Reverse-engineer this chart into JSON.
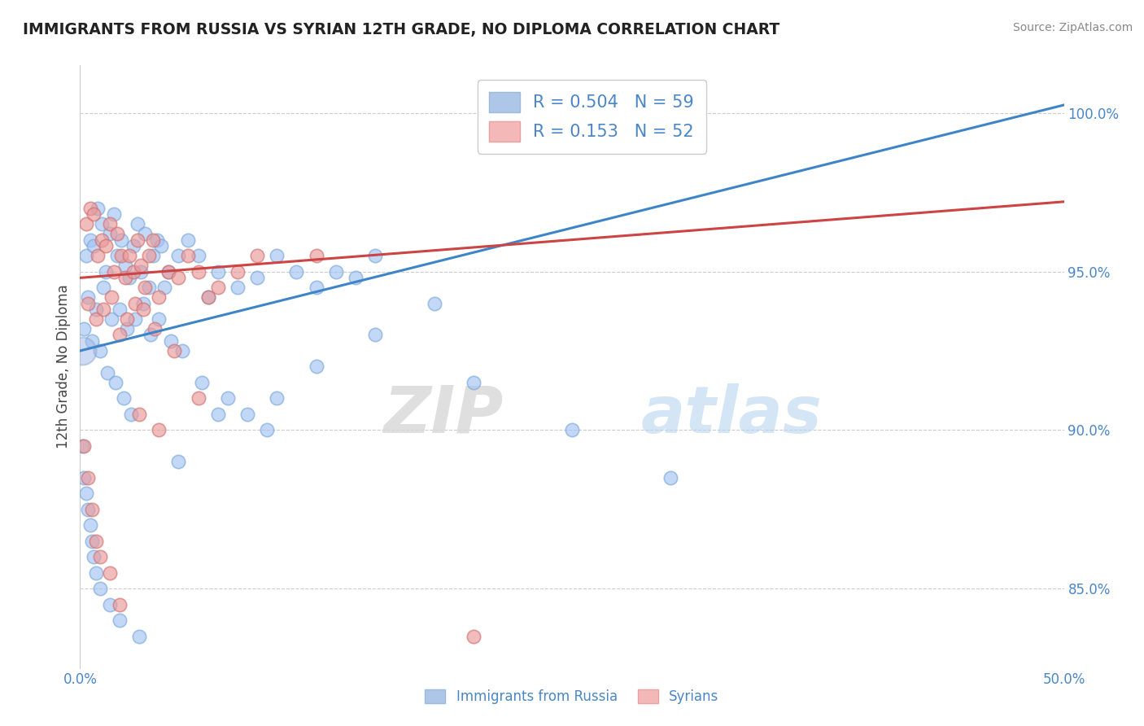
{
  "title": "IMMIGRANTS FROM RUSSIA VS SYRIAN 12TH GRADE, NO DIPLOMA CORRELATION CHART",
  "source_text": "Source: ZipAtlas.com",
  "ylabel": "12th Grade, No Diploma",
  "x_label_bottom_left": "0.0%",
  "x_label_bottom_right": "50.0%",
  "y_ticks": [
    85.0,
    90.0,
    95.0,
    100.0
  ],
  "y_tick_labels": [
    "85.0%",
    "90.0%",
    "95.0%",
    "100.0%"
  ],
  "xlim": [
    0.0,
    50.0
  ],
  "ylim": [
    82.5,
    101.5
  ],
  "legend_r_blue": "0.504",
  "legend_n_blue": "59",
  "legend_r_pink": "0.153",
  "legend_n_pink": "52",
  "blue_color": "#a4c2f4",
  "pink_color": "#ea9999",
  "blue_line_color": "#3d85c8",
  "pink_line_color": "#cc4444",
  "watermark_zip": "ZIP",
  "watermark_atlas": "atlas",
  "blue_intercept": 92.5,
  "blue_slope": 0.155,
  "pink_intercept": 94.8,
  "pink_slope": 0.048,
  "scatter_blue_x": [
    0.3,
    0.5,
    0.7,
    0.9,
    1.1,
    1.3,
    1.5,
    1.7,
    1.9,
    2.1,
    2.3,
    2.5,
    2.7,
    2.9,
    3.1,
    3.3,
    3.5,
    3.7,
    3.9,
    4.1,
    4.3,
    4.5,
    5.0,
    5.5,
    6.0,
    6.5,
    7.0,
    8.0,
    9.0,
    10.0,
    11.0,
    12.0,
    13.0,
    14.0,
    15.0,
    18.0,
    0.4,
    0.8,
    1.2,
    1.6,
    2.0,
    2.4,
    2.8,
    3.2,
    3.6,
    4.0,
    4.6,
    5.2,
    6.2,
    7.5,
    8.5,
    9.5,
    0.2,
    0.6,
    1.0,
    1.4,
    1.8,
    2.2,
    2.6
  ],
  "scatter_blue_y": [
    95.5,
    96.0,
    95.8,
    97.0,
    96.5,
    95.0,
    96.2,
    96.8,
    95.5,
    96.0,
    95.2,
    94.8,
    95.8,
    96.5,
    95.0,
    96.2,
    94.5,
    95.5,
    96.0,
    95.8,
    94.5,
    95.0,
    95.5,
    96.0,
    95.5,
    94.2,
    95.0,
    94.5,
    94.8,
    95.5,
    95.0,
    94.5,
    95.0,
    94.8,
    95.5,
    94.0,
    94.2,
    93.8,
    94.5,
    93.5,
    93.8,
    93.2,
    93.5,
    94.0,
    93.0,
    93.5,
    92.8,
    92.5,
    91.5,
    91.0,
    90.5,
    90.0,
    93.2,
    92.8,
    92.5,
    91.8,
    91.5,
    91.0,
    90.5
  ],
  "scatter_blue_x2": [
    0.1,
    0.2,
    0.3,
    0.4,
    0.5,
    0.6,
    0.7,
    0.8,
    1.0,
    1.5,
    2.0,
    3.0,
    5.0,
    7.0,
    10.0,
    12.0,
    15.0,
    20.0,
    25.0,
    30.0
  ],
  "scatter_blue_y2": [
    89.5,
    88.5,
    88.0,
    87.5,
    87.0,
    86.5,
    86.0,
    85.5,
    85.0,
    84.5,
    84.0,
    83.5,
    89.0,
    90.5,
    91.0,
    92.0,
    93.0,
    91.5,
    90.0,
    88.5
  ],
  "scatter_pink_x": [
    0.3,
    0.5,
    0.7,
    0.9,
    1.1,
    1.3,
    1.5,
    1.7,
    1.9,
    2.1,
    2.3,
    2.5,
    2.7,
    2.9,
    3.1,
    3.3,
    3.5,
    3.7,
    4.0,
    4.5,
    5.0,
    5.5,
    6.0,
    7.0,
    8.0,
    9.0,
    12.0,
    0.4,
    0.8,
    1.2,
    1.6,
    2.0,
    2.4,
    2.8,
    3.2,
    3.8,
    4.8,
    6.5
  ],
  "scatter_pink_y": [
    96.5,
    97.0,
    96.8,
    95.5,
    96.0,
    95.8,
    96.5,
    95.0,
    96.2,
    95.5,
    94.8,
    95.5,
    95.0,
    96.0,
    95.2,
    94.5,
    95.5,
    96.0,
    94.2,
    95.0,
    94.8,
    95.5,
    95.0,
    94.5,
    95.0,
    95.5,
    95.5,
    94.0,
    93.5,
    93.8,
    94.2,
    93.0,
    93.5,
    94.0,
    93.8,
    93.2,
    92.5,
    94.2
  ],
  "scatter_pink_x2": [
    0.2,
    0.4,
    0.6,
    0.8,
    1.0,
    1.5,
    2.0,
    3.0,
    4.0,
    6.0,
    20.0
  ],
  "scatter_pink_y2": [
    89.5,
    88.5,
    87.5,
    86.5,
    86.0,
    85.5,
    84.5,
    90.5,
    90.0,
    91.0,
    83.5
  ],
  "large_dot_x": 0.1,
  "large_dot_y": 92.5
}
